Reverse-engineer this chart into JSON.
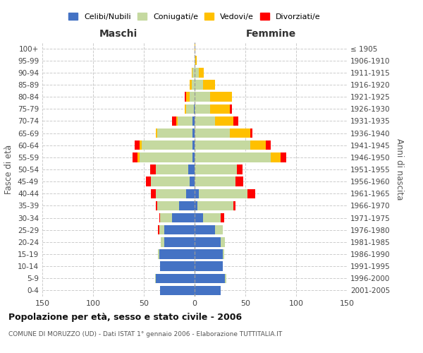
{
  "age_groups": [
    "0-4",
    "5-9",
    "10-14",
    "15-19",
    "20-24",
    "25-29",
    "30-34",
    "35-39",
    "40-44",
    "45-49",
    "50-54",
    "55-59",
    "60-64",
    "65-69",
    "70-74",
    "75-79",
    "80-84",
    "85-89",
    "90-94",
    "95-99",
    "100+"
  ],
  "birth_years": [
    "2001-2005",
    "1996-2000",
    "1991-1995",
    "1986-1990",
    "1981-1985",
    "1976-1980",
    "1971-1975",
    "1966-1970",
    "1961-1965",
    "1956-1960",
    "1951-1955",
    "1946-1950",
    "1941-1945",
    "1936-1940",
    "1931-1935",
    "1926-1930",
    "1921-1925",
    "1916-1920",
    "1911-1915",
    "1906-1910",
    "≤ 1905"
  ],
  "male": {
    "celibi": [
      34,
      38,
      34,
      35,
      30,
      30,
      22,
      15,
      8,
      5,
      6,
      2,
      2,
      2,
      2,
      1,
      0,
      0,
      0,
      0,
      0
    ],
    "coniugati": [
      0,
      1,
      0,
      1,
      3,
      5,
      12,
      22,
      30,
      38,
      32,
      52,
      50,
      35,
      15,
      7,
      5,
      3,
      2,
      0,
      0
    ],
    "vedovi": [
      0,
      0,
      0,
      0,
      0,
      0,
      0,
      0,
      0,
      0,
      0,
      2,
      2,
      1,
      1,
      2,
      3,
      2,
      1,
      0,
      0
    ],
    "divorziati": [
      0,
      0,
      0,
      0,
      0,
      1,
      1,
      1,
      5,
      5,
      6,
      5,
      5,
      0,
      4,
      0,
      2,
      0,
      0,
      0,
      0
    ]
  },
  "female": {
    "nubili": [
      26,
      30,
      28,
      28,
      26,
      20,
      8,
      3,
      4,
      0,
      0,
      0,
      0,
      0,
      0,
      0,
      0,
      0,
      0,
      0,
      0
    ],
    "coniugate": [
      0,
      1,
      0,
      1,
      4,
      8,
      18,
      35,
      48,
      40,
      42,
      75,
      55,
      35,
      20,
      15,
      15,
      8,
      4,
      1,
      0
    ],
    "vedove": [
      0,
      0,
      0,
      0,
      0,
      0,
      0,
      0,
      0,
      0,
      0,
      10,
      15,
      20,
      18,
      20,
      22,
      12,
      5,
      1,
      1
    ],
    "divorziate": [
      0,
      0,
      0,
      0,
      0,
      0,
      3,
      2,
      8,
      8,
      5,
      5,
      5,
      2,
      5,
      2,
      0,
      0,
      0,
      0,
      0
    ]
  },
  "color_celibi": "#4472c4",
  "color_coniugati": "#c5d9a0",
  "color_vedovi": "#ffc000",
  "color_divorziati": "#ff0000",
  "xlim": 150,
  "title": "Popolazione per età, sesso e stato civile - 2006",
  "subtitle": "COMUNE DI MORUZZO (UD) - Dati ISTAT 1° gennaio 2006 - Elaborazione TUTTITALIA.IT",
  "ylabel_left": "Fasce di età",
  "ylabel_right": "Anni di nascita",
  "xlabel_left": "Maschi",
  "xlabel_right": "Femmine",
  "bg_color": "#ffffff",
  "grid_color": "#cccccc"
}
